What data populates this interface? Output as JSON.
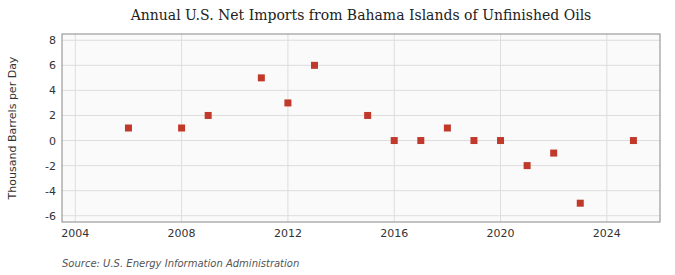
{
  "chart_data": {
    "type": "scatter",
    "title": "Annual U.S. Net Imports from Bahama Islands of Unfinished Oils",
    "y_label": "Thousand Barrels per Day",
    "annotations": [
      "Source: U.S. Energy Information Administration"
    ],
    "x": [
      2006,
      2008,
      2009,
      2011,
      2012,
      2013,
      2015,
      2016,
      2017,
      2018,
      2019,
      2020,
      2021,
      2022,
      2023,
      2025
    ],
    "values": [
      1,
      1,
      2,
      5,
      3,
      6,
      2,
      0,
      0,
      1,
      0,
      0,
      -2,
      -1,
      -5,
      0
    ],
    "color": "#c0392b",
    "marker": "square",
    "xlim": [
      2003.5,
      2026
    ],
    "ylim": [
      -6.5,
      8.5
    ],
    "xticks": [
      2004,
      2008,
      2012,
      2016,
      2020,
      2024
    ],
    "yticks": [
      -6,
      -4,
      -2,
      0,
      2,
      4,
      6,
      8
    ],
    "grid": true
  }
}
